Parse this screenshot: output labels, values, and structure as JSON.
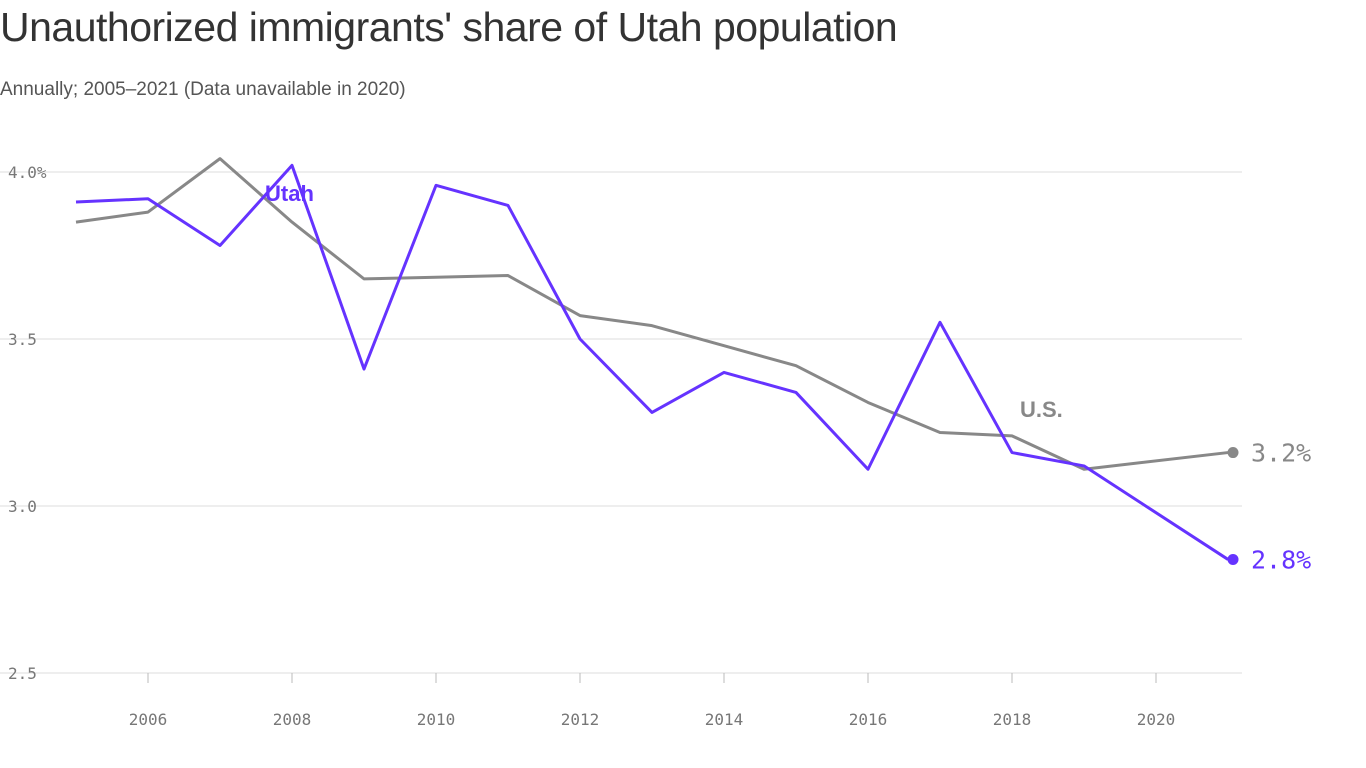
{
  "chart_data": {
    "type": "line",
    "title": "Unauthorized immigrants' share of Utah population",
    "subtitle": "Annually; 2005–2021 (Data unavailable in 2020)",
    "xlabel": "",
    "ylabel": "",
    "xlim": [
      2005,
      2021
    ],
    "ylim": [
      2.5,
      4.0
    ],
    "x_ticks": [
      "2006",
      "2008",
      "2010",
      "2012",
      "2014",
      "2016",
      "2018",
      "2020"
    ],
    "y_ticks": [
      {
        "value": 4.0,
        "label": "4.0%"
      },
      {
        "value": 3.5,
        "label": "3.5"
      },
      {
        "value": 3.0,
        "label": "3.0"
      },
      {
        "value": 2.5,
        "label": "2.5"
      }
    ],
    "grid": "horizontal",
    "series": [
      {
        "name": "Utah",
        "color": "#6533ff",
        "end_label": "2.8%",
        "x": [
          2005,
          2006,
          2007,
          2008,
          2009,
          2010,
          2011,
          2012,
          2013,
          2014,
          2015,
          2016,
          2017,
          2018,
          2019,
          2021
        ],
        "values": [
          3.91,
          3.92,
          3.78,
          4.02,
          3.41,
          3.96,
          3.9,
          3.5,
          3.28,
          3.4,
          3.34,
          3.11,
          3.55,
          3.16,
          3.12,
          2.84
        ]
      },
      {
        "name": "U.S.",
        "color": "#888888",
        "end_label": "3.2%",
        "x": [
          2005,
          2006,
          2007,
          2008,
          2009,
          2010,
          2011,
          2012,
          2013,
          2014,
          2015,
          2016,
          2017,
          2018,
          2019,
          2021
        ],
        "values": [
          3.85,
          3.88,
          4.04,
          3.85,
          3.68,
          3.685,
          3.69,
          3.57,
          3.54,
          3.48,
          3.42,
          3.31,
          3.22,
          3.21,
          3.11,
          3.16
        ]
      }
    ]
  }
}
